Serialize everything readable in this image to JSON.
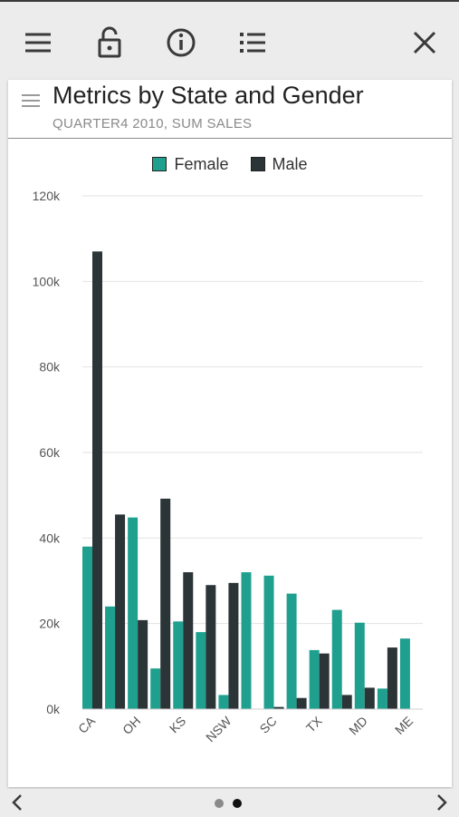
{
  "toolbar": {
    "icons": [
      "menu-icon",
      "lock-icon",
      "info-icon",
      "list-icon",
      "close-icon"
    ]
  },
  "card": {
    "title": "Metrics by State and Gender",
    "subtitle": "QUARTER4 2010, SUM SALES"
  },
  "chart_data": {
    "type": "bar",
    "categories": [
      "CA",
      "",
      "OH",
      "",
      "KS",
      "",
      "NSW",
      "",
      "SC",
      "",
      "TX",
      "",
      "MD",
      "",
      "ME"
    ],
    "series": [
      {
        "name": "Female",
        "color": "#1fa08f",
        "values": [
          38000,
          24000,
          44800,
          9500,
          20500,
          18000,
          3300,
          32000,
          31200,
          27000,
          13800,
          23200,
          20200,
          4800,
          16500
        ]
      },
      {
        "name": "Male",
        "color": "#2b3436",
        "values": [
          107000,
          45500,
          20800,
          49200,
          32000,
          29000,
          29500,
          0,
          500,
          2600,
          13000,
          3300,
          5000,
          14400,
          0
        ]
      }
    ],
    "yticks": [
      "0k",
      "20k",
      "40k",
      "60k",
      "80k",
      "100k",
      "120k"
    ],
    "ylim": [
      0,
      120000
    ],
    "legend_position": "top-center",
    "grid": true
  },
  "pager": {
    "page_count": 2,
    "active_page": 2
  }
}
